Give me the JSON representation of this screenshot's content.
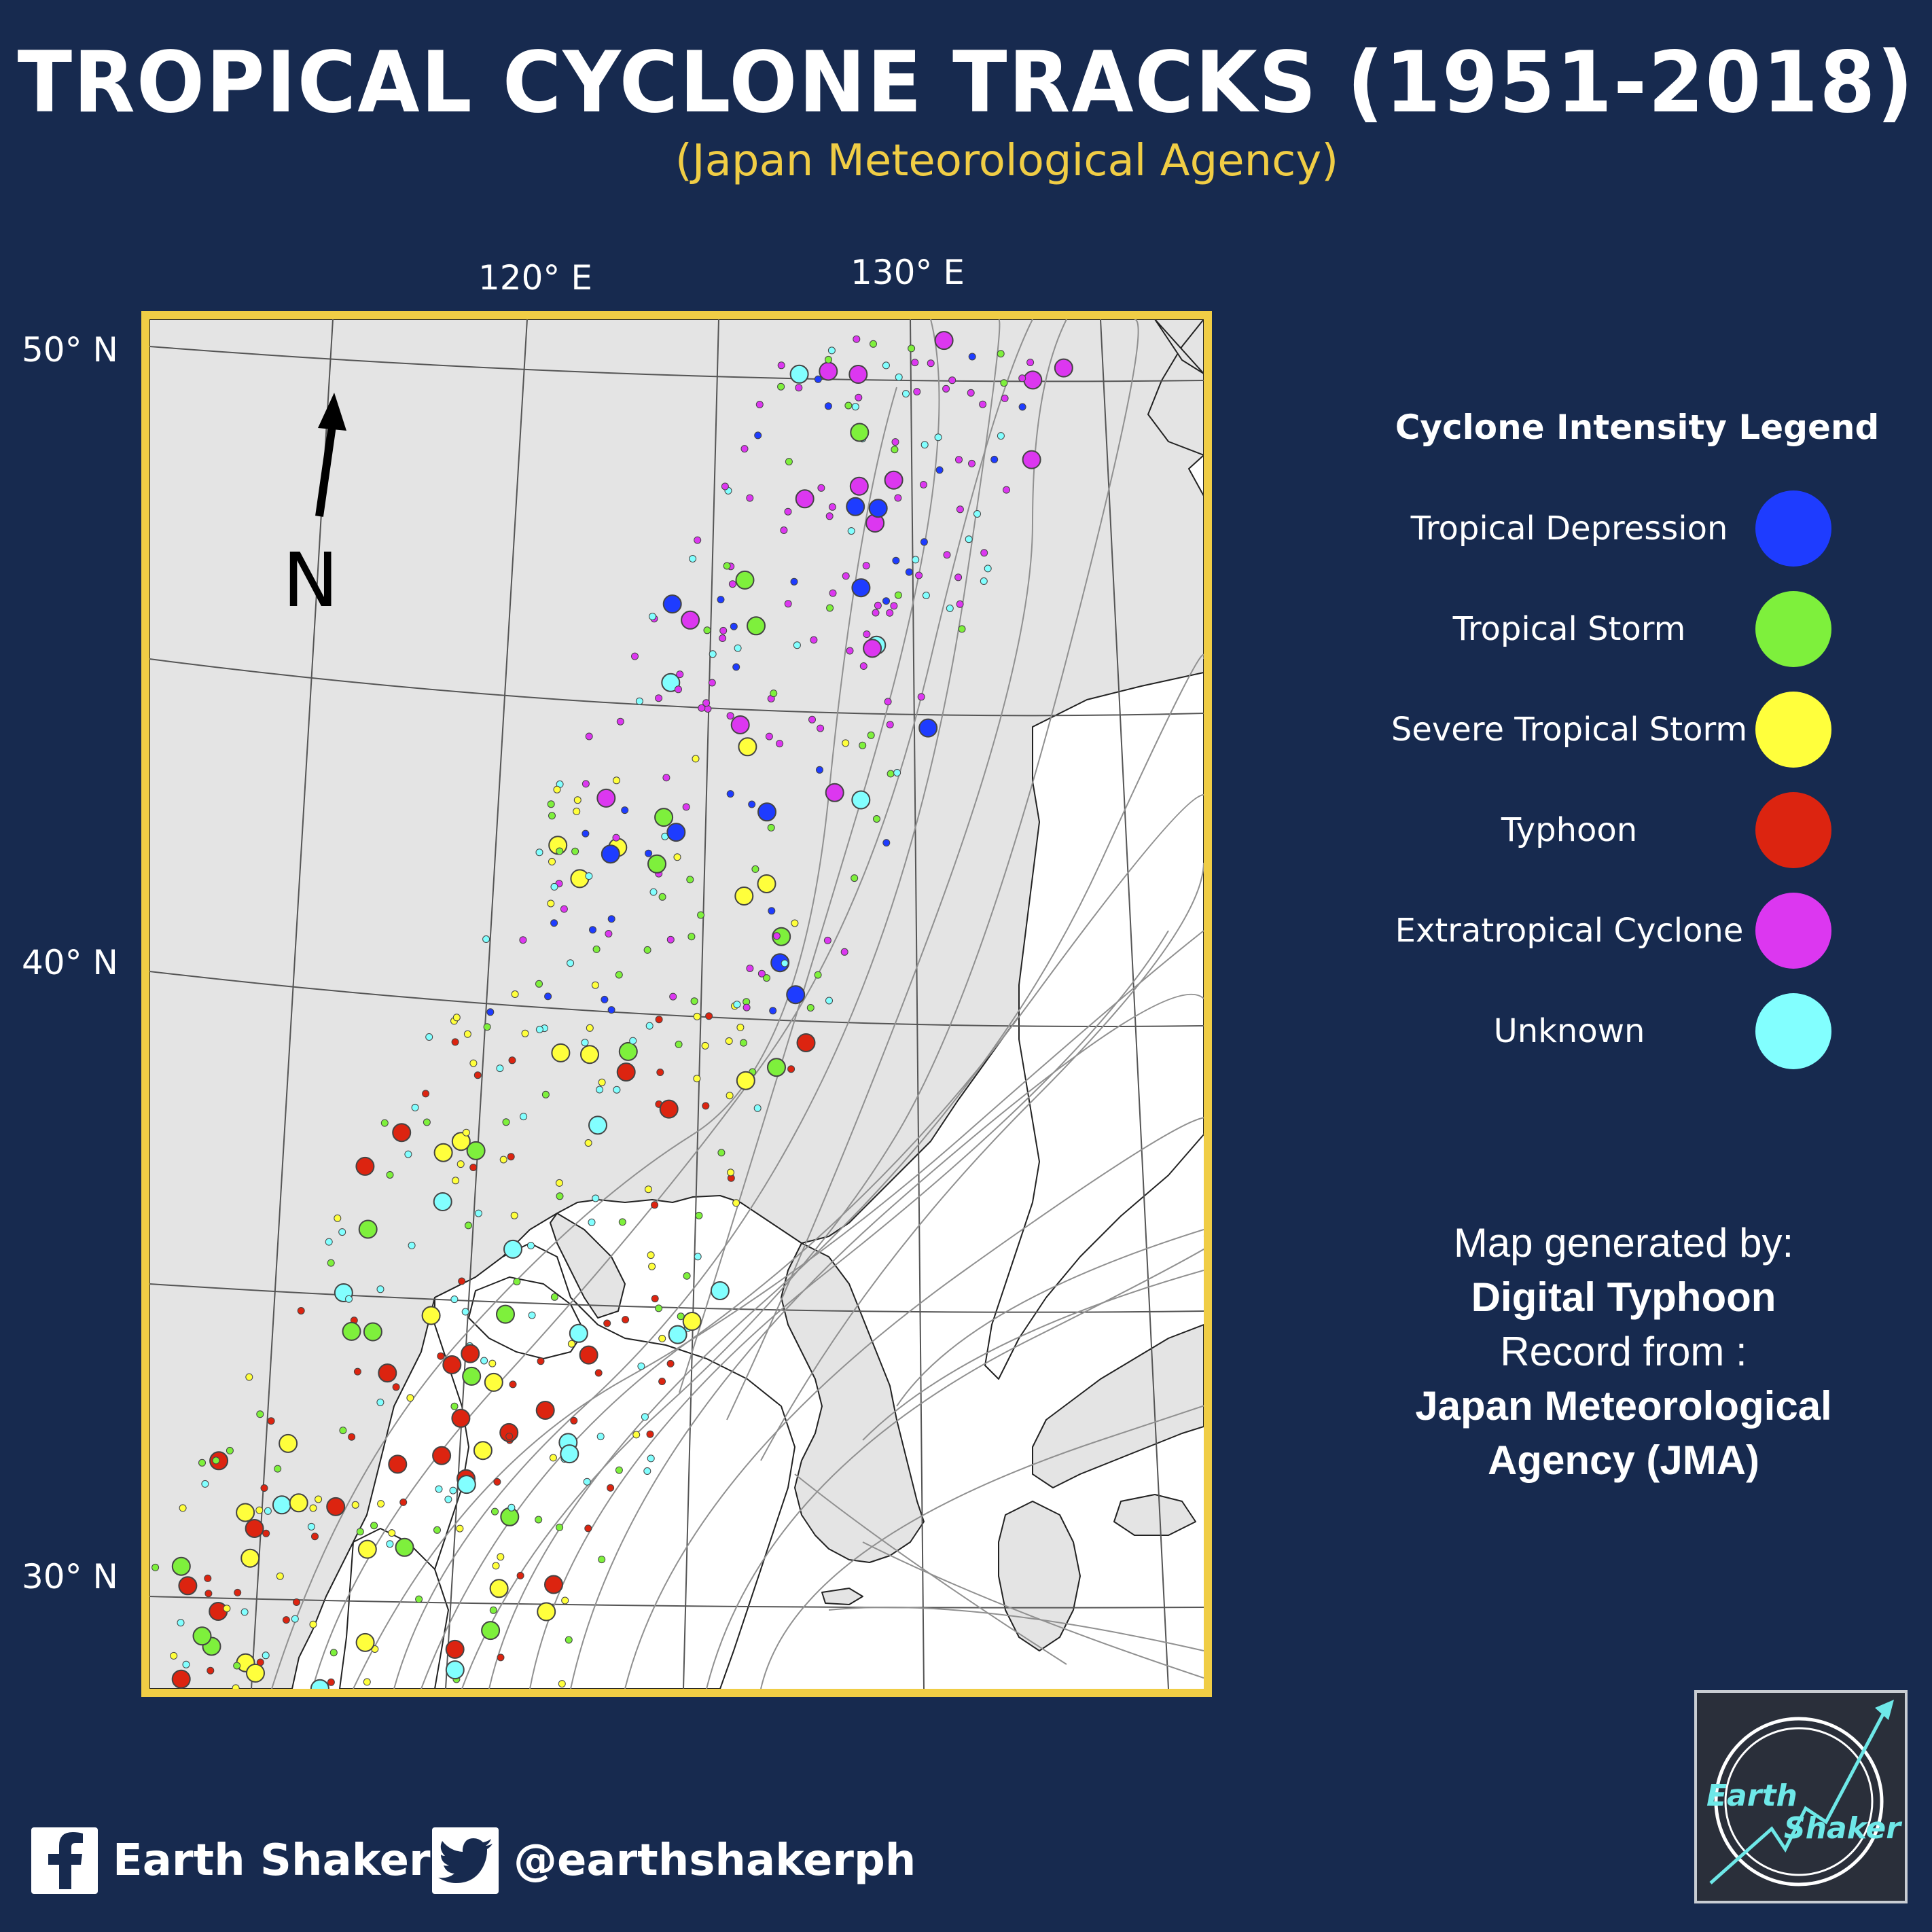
{
  "header": {
    "title": "TROPICAL CYCLONE TRACKS (1951-2018)",
    "subtitle": "(Japan Meteorological Agency)"
  },
  "map": {
    "longitude_labels": [
      "120° E",
      "130° E"
    ],
    "latitude_labels": [
      "50° N",
      "40° N",
      "30° N"
    ],
    "north_label": "N",
    "land_color": "#e4e4e4",
    "sea_color": "#ffffff",
    "frame_color": "#f0cd45"
  },
  "legend": {
    "title": "Cyclone Intensity Legend",
    "items": [
      {
        "label": "Tropical Depression",
        "color": "#1e3cff"
      },
      {
        "label": "Tropical Storm",
        "color": "#7ef03c"
      },
      {
        "label": "Severe Tropical Storm",
        "color": "#ffff3c"
      },
      {
        "label": "Typhoon",
        "color": "#dc2410"
      },
      {
        "label": "Extratropical Cyclone",
        "color": "#dc37f0"
      },
      {
        "label": "Unknown",
        "color": "#82ffff"
      }
    ]
  },
  "credit": {
    "line1": "Map generated by:",
    "line2": "Digital Typhoon",
    "line3": "Record from :",
    "line4": "Japan Meteorological",
    "line5": "Agency (JMA)"
  },
  "social": {
    "facebook": "Earth Shaker",
    "twitter": "@earthshakerph"
  },
  "logo": {
    "line1": "Earth",
    "line2": "Shaker"
  }
}
